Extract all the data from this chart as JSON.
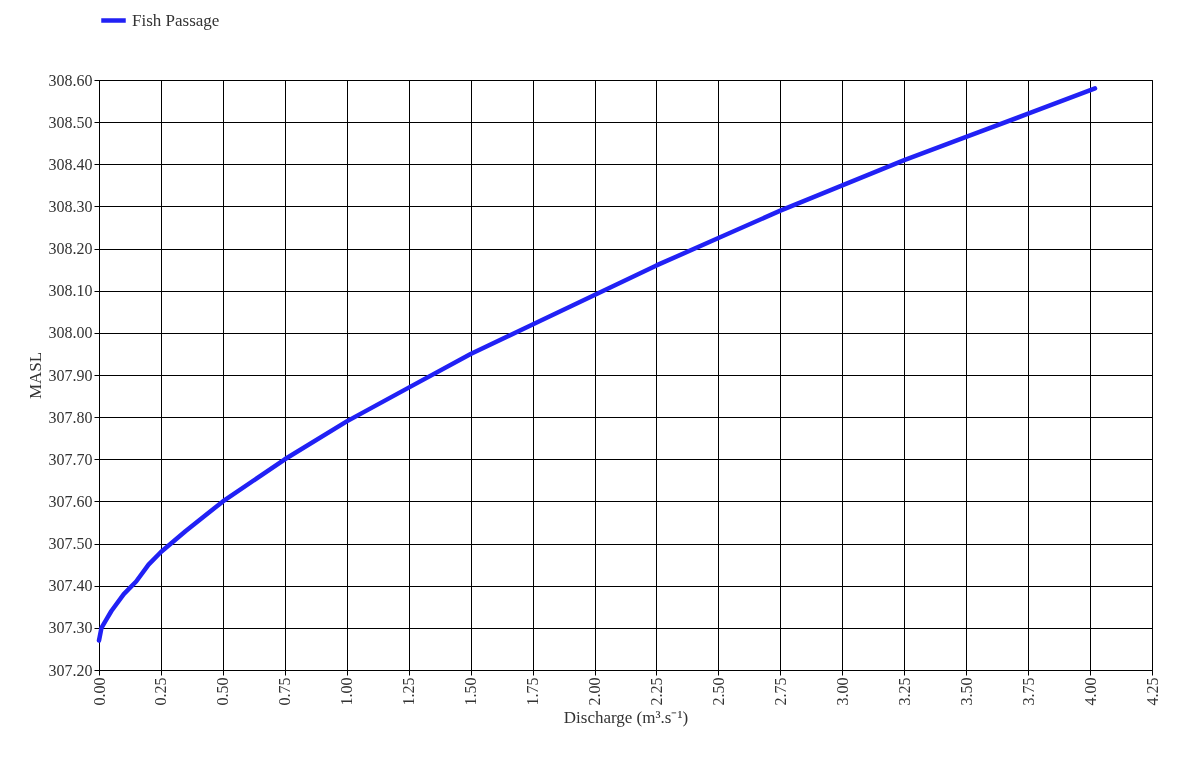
{
  "chart_data": {
    "type": "line",
    "xlabel": "Discharge (m³.s⁻¹)",
    "ylabel": "MASL",
    "x": [
      0.0,
      0.01,
      0.03,
      0.05,
      0.1,
      0.15,
      0.2,
      0.25,
      0.35,
      0.5,
      0.75,
      1.0,
      1.25,
      1.5,
      1.75,
      2.0,
      2.25,
      2.5,
      2.75,
      3.0,
      3.25,
      3.5,
      3.75,
      4.02
    ],
    "series": [
      {
        "name": "Fish Passage",
        "color": "#2121f5",
        "values": [
          307.27,
          307.3,
          307.32,
          307.34,
          307.38,
          307.41,
          307.45,
          307.48,
          307.53,
          307.6,
          307.7,
          307.79,
          307.87,
          307.95,
          308.02,
          308.09,
          308.16,
          308.225,
          308.29,
          308.35,
          308.41,
          308.465,
          308.52,
          308.58
        ]
      }
    ],
    "xlim": [
      0,
      4.25
    ],
    "ylim": [
      307.2,
      308.6
    ],
    "xticks": [
      {
        "value": 0,
        "label": "0.00"
      },
      {
        "value": 0.25,
        "label": "0.25"
      },
      {
        "value": 0.5,
        "label": "0.50"
      },
      {
        "value": 0.75,
        "label": "0.75"
      },
      {
        "value": 1,
        "label": "1.00"
      },
      {
        "value": 1.25,
        "label": "1.25"
      },
      {
        "value": 1.5,
        "label": "1.50"
      },
      {
        "value": 1.75,
        "label": "1.75"
      },
      {
        "value": 2,
        "label": "2.00"
      },
      {
        "value": 2.25,
        "label": "2.25"
      },
      {
        "value": 2.5,
        "label": "2.50"
      },
      {
        "value": 2.75,
        "label": "2.75"
      },
      {
        "value": 3,
        "label": "3.00"
      },
      {
        "value": 3.25,
        "label": "3.25"
      },
      {
        "value": 3.5,
        "label": "3.50"
      },
      {
        "value": 3.75,
        "label": "3.75"
      },
      {
        "value": 4,
        "label": "4.00"
      },
      {
        "value": 4.25,
        "label": "4.25"
      }
    ],
    "yticks": [
      {
        "value": 307.2,
        "label": "307.20"
      },
      {
        "value": 307.3,
        "label": "307.30"
      },
      {
        "value": 307.4,
        "label": "307.40"
      },
      {
        "value": 307.5,
        "label": "307.50"
      },
      {
        "value": 307.6,
        "label": "307.60"
      },
      {
        "value": 307.7,
        "label": "307.70"
      },
      {
        "value": 307.8,
        "label": "307.80"
      },
      {
        "value": 307.9,
        "label": "307.90"
      },
      {
        "value": 308.0,
        "label": "308.00"
      },
      {
        "value": 308.1,
        "label": "308.10"
      },
      {
        "value": 308.2,
        "label": "308.20"
      },
      {
        "value": 308.3,
        "label": "308.30"
      },
      {
        "value": 308.4,
        "label": "308.40"
      },
      {
        "value": 308.5,
        "label": "308.50"
      },
      {
        "value": 308.6,
        "label": "308.60"
      }
    ],
    "grid": true,
    "legend": "top",
    "line_style": "solid"
  }
}
